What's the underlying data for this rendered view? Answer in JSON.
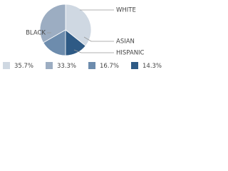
{
  "chart_data": {
    "type": "pie",
    "categories": [
      "WHITE",
      "BLACK",
      "HISPANIC",
      "ASIAN"
    ],
    "values": [
      35.7,
      33.3,
      16.7,
      14.3
    ],
    "value_labels": [
      "35.7%",
      "33.3%",
      "16.7%",
      "14.3%"
    ],
    "colors": [
      "#cfd8e2",
      "#9cadc2",
      "#6d8cad",
      "#2e5a85"
    ]
  }
}
